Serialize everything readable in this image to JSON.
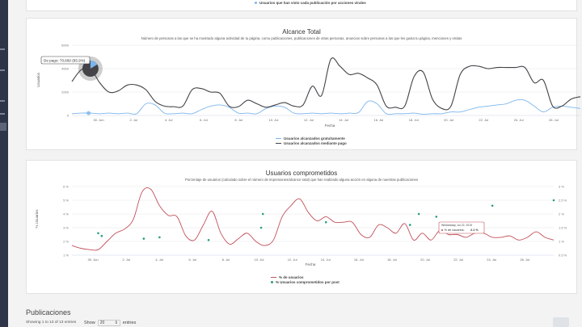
{
  "top_panel": {
    "legend_label": "Usuarios que han visto cada publicación por acciones virales"
  },
  "reach_chart": {
    "title": "Alcance Total",
    "subtitle": "Número de personas a las que se ha mostrado alguna actividad de tu página, como publicaciones, publicaciones de otras personas, anuncios sobre personas a las que les gusta tu página, menciones y visitas",
    "tooltip": "De pago: 70,660 (85.9%)",
    "colors": {
      "organic": "#7cb5ec",
      "paid": "#434348"
    }
  },
  "engagement_chart": {
    "title": "Usuarios comprometidos",
    "subtitle": "Porcentaje de usuarios (calculado sobre el número de impresiones/alcance total) que han realizado alguna acción en alguna de nuestras publicaciones",
    "tooltip": {
      "date": "Wednesday, Jul 22, 2015",
      "series": "% de usuarios:",
      "value": "2.1 %"
    },
    "colors": {
      "line": "#c0505a",
      "dots": "#2a9d7f"
    }
  },
  "chart_data": [
    {
      "type": "line",
      "title": "Alcance Total",
      "xlabel": "Fecha",
      "ylabel": "Usuarios",
      "y_ticks": [
        "0",
        "2000",
        "4000",
        "6000"
      ],
      "ylim": [
        0,
        6000
      ],
      "x_ticks": [
        "30. Jun",
        "2. Jul",
        "4. Jul",
        "6. Jul",
        "8. Jul",
        "10. Jul",
        "12. Jul",
        "14. Jul",
        "16. Jul",
        "18. Jul",
        "20. Jul",
        "22. Jul",
        "24. Jul",
        "26. Jul"
      ],
      "legend": "bottom-center",
      "series": [
        {
          "name": "Usuarios alcanzados gratuitamente",
          "x": [
            0,
            0.5,
            1,
            1.5,
            2,
            2.5,
            3,
            3.5,
            4,
            4.5,
            5,
            5.5,
            6,
            6.5,
            7,
            7.5,
            8,
            8.5,
            9,
            9.5,
            10,
            10.5,
            11,
            11.5,
            12,
            12.5,
            13,
            13.5,
            14,
            14.5,
            15,
            15.5,
            16,
            16.5,
            17,
            17.5,
            18,
            18.5,
            19,
            19.5,
            20,
            20.5,
            21,
            21.5,
            22,
            22.5,
            23,
            23.5,
            24,
            24.5,
            25,
            25.5,
            26,
            26.5,
            27,
            27.5
          ],
          "values": [
            150,
            200,
            200,
            150,
            200,
            150,
            200,
            150,
            1000,
            900,
            200,
            150,
            200,
            150,
            500,
            800,
            900,
            700,
            200,
            200,
            150,
            600,
            800,
            700,
            200,
            150,
            200,
            150,
            200,
            150,
            200,
            250,
            1200,
            1000,
            150,
            150,
            150,
            200,
            100,
            150,
            150,
            300,
            300,
            500,
            700,
            800,
            900,
            1000,
            1300,
            1300,
            800,
            300,
            700,
            800,
            700,
            600
          ]
        },
        {
          "name": "Usuarios alcanzados mediante pago",
          "x": [
            0,
            0.5,
            1,
            1.5,
            2,
            2.5,
            3,
            3.5,
            4,
            4.5,
            5,
            5.5,
            6,
            6.5,
            7,
            7.5,
            8,
            8.5,
            9,
            9.5,
            10,
            10.5,
            11,
            11.5,
            12,
            12.5,
            13,
            13.5,
            14,
            14.5,
            15,
            15.5,
            16,
            16.5,
            17,
            17.5,
            18,
            18.5,
            19,
            19.5,
            20,
            20.5,
            21,
            21.5,
            22,
            22.5,
            23,
            23.5,
            24,
            24.5,
            25,
            25.5,
            26,
            26.5,
            27,
            27.5
          ],
          "values": [
            2900,
            3900,
            4000,
            2800,
            2000,
            2100,
            2600,
            2600,
            2200,
            1200,
            800,
            750,
            800,
            2200,
            2300,
            2000,
            1900,
            800,
            750,
            1300,
            1000,
            700,
            900,
            1100,
            800,
            900,
            2500,
            1700,
            4800,
            4200,
            3500,
            3600,
            3200,
            2600,
            800,
            700,
            800,
            3300,
            3700,
            1400,
            600,
            800,
            3500,
            4200,
            4200,
            4000,
            4100,
            4100,
            4100,
            4100,
            2800,
            3000,
            800,
            800,
            1400,
            1600
          ]
        }
      ]
    },
    {
      "type": "line",
      "title": "Usuarios comprometidos",
      "xlabel": "Fecha",
      "ylabel": "% Usuarios",
      "y_ticks": [
        "1 %",
        "2 %",
        "3 %",
        "4 %",
        "5 %",
        "6 %"
      ],
      "ylim": [
        1,
        6
      ],
      "y2_ticks": [
        "0.5 %",
        "1 %",
        "1.5 %",
        "2 %",
        "2.5 %",
        "3 %"
      ],
      "y2lim": [
        0.5,
        3
      ],
      "x_ticks": [
        "30. Jun",
        "2. Jul",
        "4. Jul",
        "6. Jul",
        "8. Jul",
        "10. Jul",
        "12. Jul",
        "14. Jul",
        "16. Jul",
        "18. Jul",
        "20. Jul",
        "22. Jul",
        "24. Jul",
        "26. Jul"
      ],
      "legend": "bottom-center",
      "series": [
        {
          "name": "% de usuarios",
          "x": [
            0,
            0.5,
            1,
            1.5,
            2,
            2.5,
            3,
            3.5,
            4,
            4.5,
            5,
            5.5,
            6,
            6.5,
            7,
            7.5,
            8,
            8.5,
            9,
            9.5,
            10,
            10.5,
            11,
            11.5,
            12,
            12.5,
            13,
            13.5,
            14,
            14.5,
            15,
            15.5,
            16,
            16.5,
            17,
            17.5,
            18,
            18.5,
            19,
            19.5,
            20,
            20.5,
            21,
            21.5,
            22,
            22.5,
            23,
            23.5,
            24,
            24.5,
            25,
            25.5,
            26,
            26.5,
            27,
            27.5
          ],
          "values": [
            1.7,
            1.5,
            1.4,
            1.4,
            2.0,
            2.6,
            2.9,
            3.6,
            5.6,
            5.8,
            4.6,
            3.9,
            3.8,
            2.4,
            2.1,
            3.2,
            4.2,
            2.6,
            1.8,
            2.2,
            2.6,
            2.0,
            1.7,
            2.1,
            3.8,
            4.6,
            5.1,
            4.1,
            3.5,
            3.8,
            3.4,
            3.4,
            3.4,
            2.5,
            2.3,
            3.2,
            3.0,
            2.6,
            3.3,
            2.1,
            2.6,
            2.1,
            2.8,
            2.5,
            2.5,
            2.3,
            2.6,
            2.6,
            2.3,
            2.3,
            2.4,
            2.1,
            2.3,
            2.7,
            2.3,
            2.1
          ]
        },
        {
          "name": "% Usuarios comprometidos por post",
          "x": [
            1.5,
            1.7,
            4.1,
            5.0,
            7.8,
            10.8,
            10.9,
            14.5,
            19.3,
            19.8,
            20.8,
            24.0,
            27.5
          ],
          "values": [
            1.3,
            1.2,
            1.1,
            1.15,
            1.05,
            1.5,
            2.0,
            1.7,
            1.6,
            2.0,
            1.9,
            2.3,
            2.5
          ]
        }
      ]
    }
  ],
  "publications": {
    "title": "Publicaciones",
    "info": "Showing 1 to 13 of 13 entries",
    "show_label": "Show",
    "page_size": "20",
    "entries_label": "entries"
  }
}
